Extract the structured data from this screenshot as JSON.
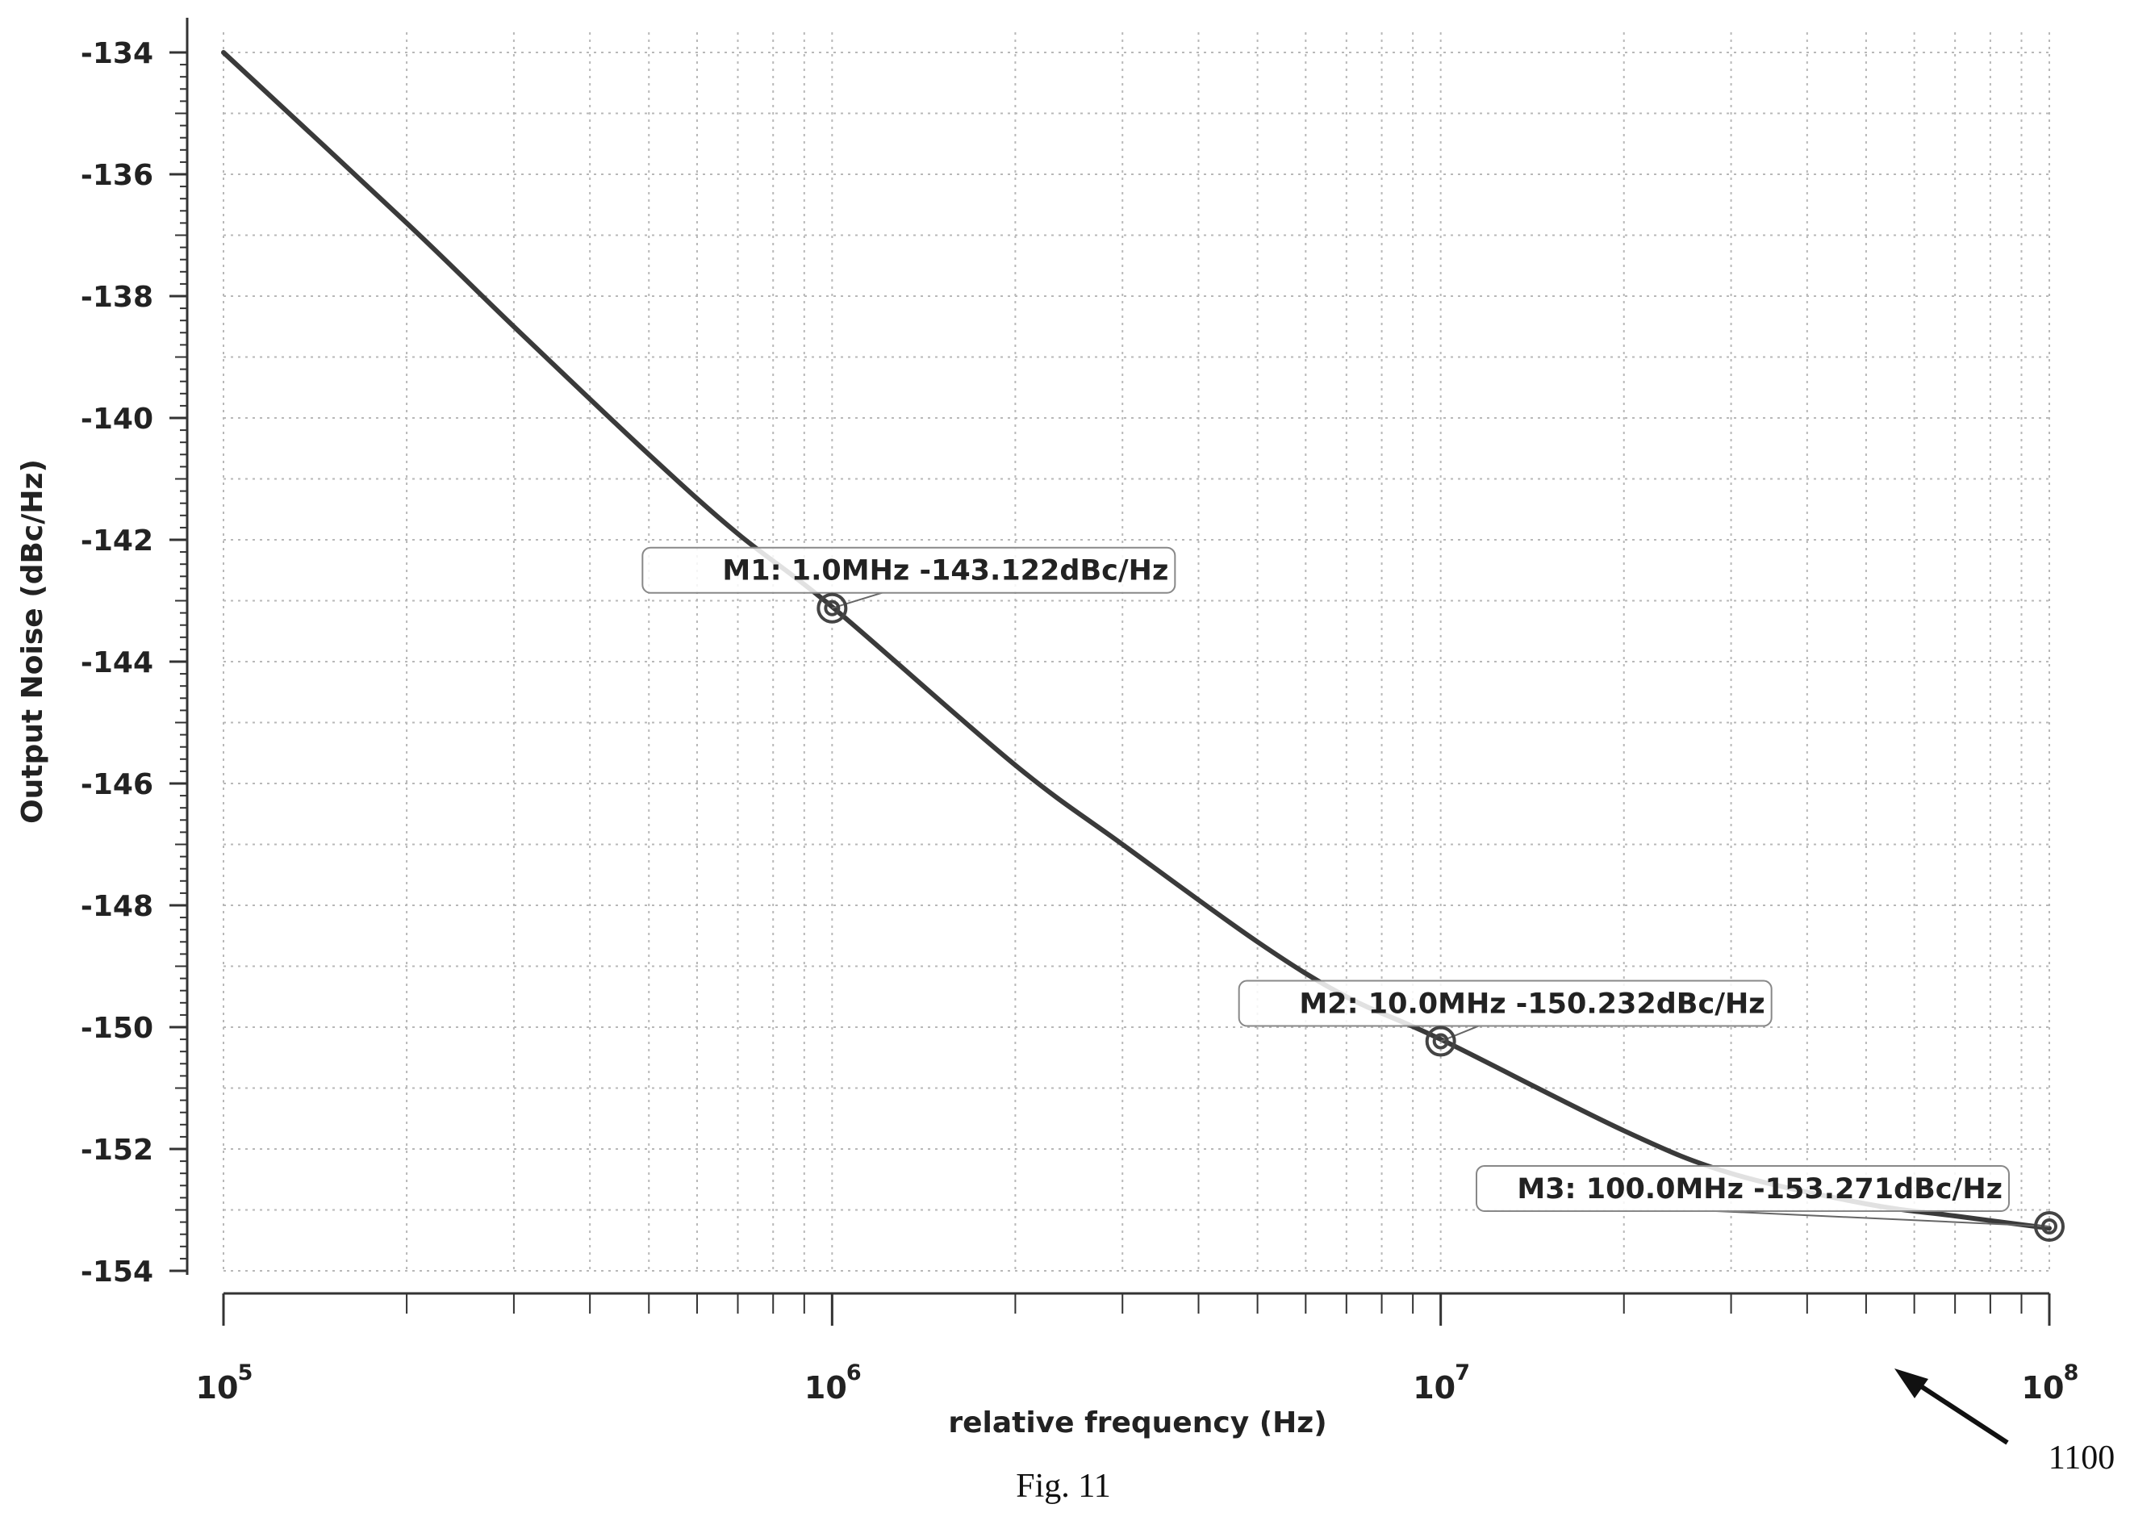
{
  "chart_data": {
    "type": "line",
    "xscale": "log",
    "xlabel": "relative frequency (Hz)",
    "ylabel": "Output Noise (dBc/Hz)",
    "xlim": [
      100000,
      100000000
    ],
    "ylim": [
      -154,
      -134
    ],
    "x_ticks": [
      {
        "value": 100000,
        "base": "10",
        "exp": "5"
      },
      {
        "value": 1000000,
        "base": "10",
        "exp": "6"
      },
      {
        "value": 10000000,
        "base": "10",
        "exp": "7"
      },
      {
        "value": 100000000,
        "base": "10",
        "exp": "8"
      }
    ],
    "y_ticks": [
      "-134",
      "-136",
      "-138",
      "-140",
      "-142",
      "-144",
      "-146",
      "-148",
      "-150",
      "-152",
      "-154"
    ],
    "grid": true,
    "series": [
      {
        "color": "#3a3a3a",
        "x": [
          100000,
          200000,
          300000,
          500000,
          700000,
          1000000,
          2000000,
          3000000,
          5000000,
          7000000,
          10000000,
          20000000,
          30000000,
          50000000,
          70000000,
          100000000
        ],
        "y": [
          -134.0,
          -136.8,
          -138.5,
          -140.6,
          -141.9,
          -143.1,
          -145.7,
          -147.0,
          -148.6,
          -149.5,
          -150.2,
          -151.7,
          -152.4,
          -152.9,
          -153.1,
          -153.3
        ]
      }
    ],
    "markers": [
      {
        "x": 1000000,
        "y": -143.122,
        "label": "M1: 1.0MHz -143.122dBc/Hz"
      },
      {
        "x": 10000000,
        "y": -150.232,
        "label": "M2: 10.0MHz -150.232dBc/Hz"
      },
      {
        "x": 100000000,
        "y": -153.271,
        "label": "M3: 100.0MHz -153.271dBc/Hz"
      }
    ]
  },
  "figure_caption": "Fig. 11",
  "reference_numeral": "1100"
}
